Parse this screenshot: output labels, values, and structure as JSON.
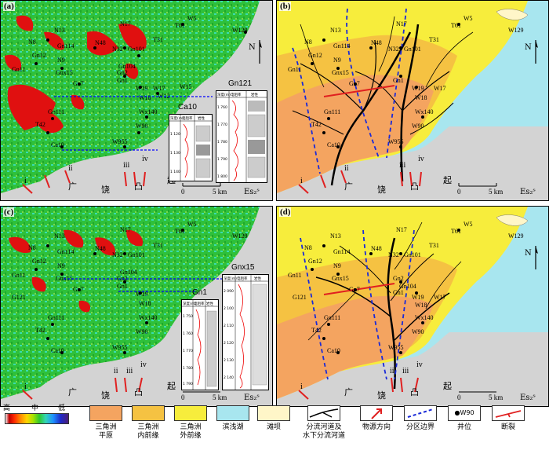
{
  "panels": {
    "a": {
      "label": "(a)",
      "inset1_title": "Gn121",
      "inset2_title": "Ca10",
      "region_text": "Es₂ˢ"
    },
    "b": {
      "label": "(b)",
      "region_text": "Es₂ˢ"
    },
    "c": {
      "label": "(c)",
      "inset1_title": "Gnx15",
      "inset2_title": "Gn1",
      "region_text": "Es₂ˢ"
    },
    "d": {
      "label": "(d)",
      "region_text": "Es₂ˢ"
    }
  },
  "map_text": {
    "guang": "广",
    "rao": "饶",
    "tu": "凸",
    "qi": "起",
    "north": "N"
  },
  "arrows_labels": [
    "i",
    "ii",
    "iii",
    "iv"
  ],
  "scale": {
    "zero": "0",
    "five": "5 km"
  },
  "wells_top": [
    {
      "n": "W5"
    },
    {
      "n": "T61"
    },
    {
      "n": "W129"
    },
    {
      "n": "N13"
    },
    {
      "n": "N17"
    },
    {
      "n": "N8"
    },
    {
      "n": "Gn114"
    },
    {
      "n": "N48"
    },
    {
      "n": "N32"
    },
    {
      "n": "Gn101"
    },
    {
      "n": "T31"
    },
    {
      "n": "Gn12"
    },
    {
      "n": "N9"
    },
    {
      "n": "Gn11"
    },
    {
      "n": "Gnx15"
    },
    {
      "n": "Gn104"
    },
    {
      "n": "Gn2"
    },
    {
      "n": "Gn7"
    },
    {
      "n": "Gn1"
    },
    {
      "n": "W19"
    },
    {
      "n": "W17"
    },
    {
      "n": "W12"
    },
    {
      "n": "W18"
    },
    {
      "n": "Gn121"
    },
    {
      "n": "Gn111"
    },
    {
      "n": "Wx140"
    },
    {
      "n": "T42"
    },
    {
      "n": "W90"
    },
    {
      "n": "W955"
    },
    {
      "n": "Ca10"
    },
    {
      "n": "W15"
    }
  ],
  "inset_header": {
    "c1": "深度(m)",
    "c2": "电阻率",
    "c3": "岩性"
  },
  "inset_depths_a1": [
    "1 760",
    "1 770",
    "1 780",
    "1 790",
    "1 800"
  ],
  "inset_depths_a2": [
    "1 120",
    "1 130",
    "1 140"
  ],
  "inset_depths_c1": [
    "2 090",
    "2 100",
    "2 110",
    "2 120",
    "2 130",
    "2 140"
  ],
  "inset_depths_c2": [
    "1 750",
    "1 760",
    "1 770",
    "1 780",
    "1 790"
  ],
  "legend": {
    "grad_high": "高",
    "grad_mid": "中",
    "grad_low": "低",
    "items": [
      {
        "label1": "三角洲",
        "label2": "平原",
        "color": "#f4a460"
      },
      {
        "label1": "三角洲",
        "label2": "内前缘",
        "color": "#f5c242"
      },
      {
        "label1": "三角洲",
        "label2": "外前缘",
        "color": "#f7ed3c"
      },
      {
        "label1": "滨浅湖",
        "label2": "",
        "color": "#a8e6ef"
      },
      {
        "label1": "滩坝",
        "label2": "",
        "color": "#fff6c8"
      },
      {
        "label1": "分流河道及",
        "label2": "水下分流河道",
        "color": "#ffffff"
      },
      {
        "label1": "物源方向",
        "label2": "",
        "color": "#ffffff"
      },
      {
        "label1": "分区边界",
        "label2": "",
        "color": "#ffffff"
      },
      {
        "label1": "井位",
        "label2": "",
        "color": "#ffffff"
      },
      {
        "label1": "断裂",
        "label2": "",
        "color": "#ffffff"
      }
    ],
    "well_sample": "W90"
  }
}
